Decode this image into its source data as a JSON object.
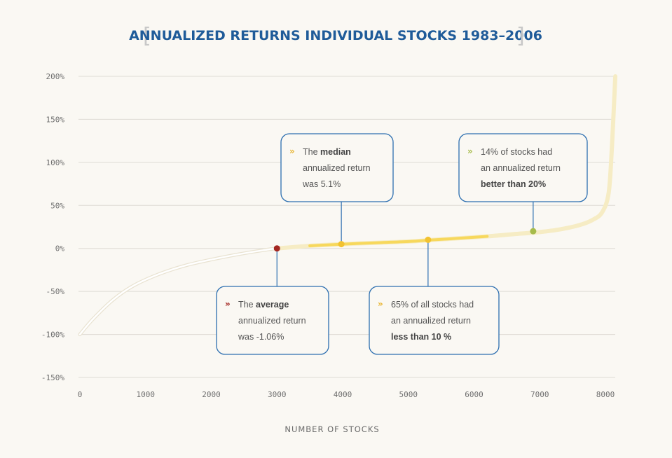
{
  "chart_data": {
    "type": "line",
    "title": "ANNUALIZED RETURNS INDIVIDUAL STOCKS 1983–2006",
    "xlabel": "NUMBER OF STOCKS",
    "ylabel": "",
    "xlim": [
      0,
      8000
    ],
    "ylim": [
      -150,
      200
    ],
    "x_ticks": [
      0,
      1000,
      2000,
      3000,
      4000,
      5000,
      6000,
      7000,
      8000
    ],
    "x_tick_labels": [
      "0",
      "1000",
      "2000",
      "3000",
      "4000",
      "5000",
      "6000",
      "7000",
      "8000"
    ],
    "y_ticks": [
      200,
      150,
      100,
      50,
      0,
      -50,
      -100,
      -150
    ],
    "y_tick_labels": [
      "200%",
      "150%",
      "100%",
      "50%",
      "0%",
      "-50%",
      "-100%",
      "-150%"
    ],
    "grid": true,
    "series": [
      {
        "name": "Annualized return",
        "x": [
          0,
          200,
          500,
          800,
          1200,
          1600,
          2000,
          2400,
          2800,
          3000,
          3500,
          4000,
          4500,
          5000,
          5400,
          5800,
          6200,
          6600,
          7000,
          7300,
          7600,
          7800,
          7950,
          8050,
          8100,
          8150
        ],
        "y": [
          -100,
          -82,
          -60,
          -44,
          -30,
          -20,
          -13,
          -7,
          -2,
          0,
          3,
          5,
          6.5,
          8,
          10,
          12,
          14,
          16.5,
          19,
          22,
          27,
          33,
          42,
          65,
          120,
          200
        ]
      }
    ],
    "highlights": [
      {
        "name": "average",
        "x": 3000,
        "y": 0,
        "color": "#a32621"
      },
      {
        "name": "median",
        "x": 3980,
        "y": 5,
        "color": "#f2c230"
      },
      {
        "name": "65-percent",
        "x": 5300,
        "y": 10,
        "color": "#f2c230"
      },
      {
        "name": "14-percent",
        "x": 6900,
        "y": 20,
        "color": "#a6bb4a"
      }
    ],
    "annotations": [
      {
        "id": "median",
        "chevron_color": "#e8b430",
        "lines": [
          [
            {
              "t": "The "
            },
            {
              "t": "median",
              "b": true
            }
          ],
          [
            {
              "t": "annualized return"
            }
          ],
          [
            {
              "t": "was 5.1%"
            }
          ]
        ]
      },
      {
        "id": "fourteen",
        "chevron_color": "#a6bb4a",
        "lines": [
          [
            {
              "t": "14% of stocks had"
            }
          ],
          [
            {
              "t": "an annualized return"
            }
          ],
          [
            {
              "t": "better than 20%",
              "b": true
            }
          ]
        ]
      },
      {
        "id": "average",
        "chevron_color": "#a32621",
        "lines": [
          [
            {
              "t": "The "
            },
            {
              "t": "average",
              "b": true
            }
          ],
          [
            {
              "t": "annualized return"
            }
          ],
          [
            {
              "t": "was -1.06%"
            }
          ]
        ]
      },
      {
        "id": "sixtyfive",
        "chevron_color": "#e8b430",
        "lines": [
          [
            {
              "t": "65% of all stocks had"
            }
          ],
          [
            {
              "t": "an annualized return"
            }
          ],
          [
            {
              "t": "less than 10 %",
              "b": true
            }
          ]
        ]
      }
    ]
  },
  "colors": {
    "title": "#1f5b99",
    "box_border": "#2d6fb0",
    "grid": "#dedbd4",
    "curve_pale": "#f6ecc4",
    "curve_bright": "#f7d85c"
  },
  "title_brackets": {
    "left": "[",
    "right": "]"
  }
}
